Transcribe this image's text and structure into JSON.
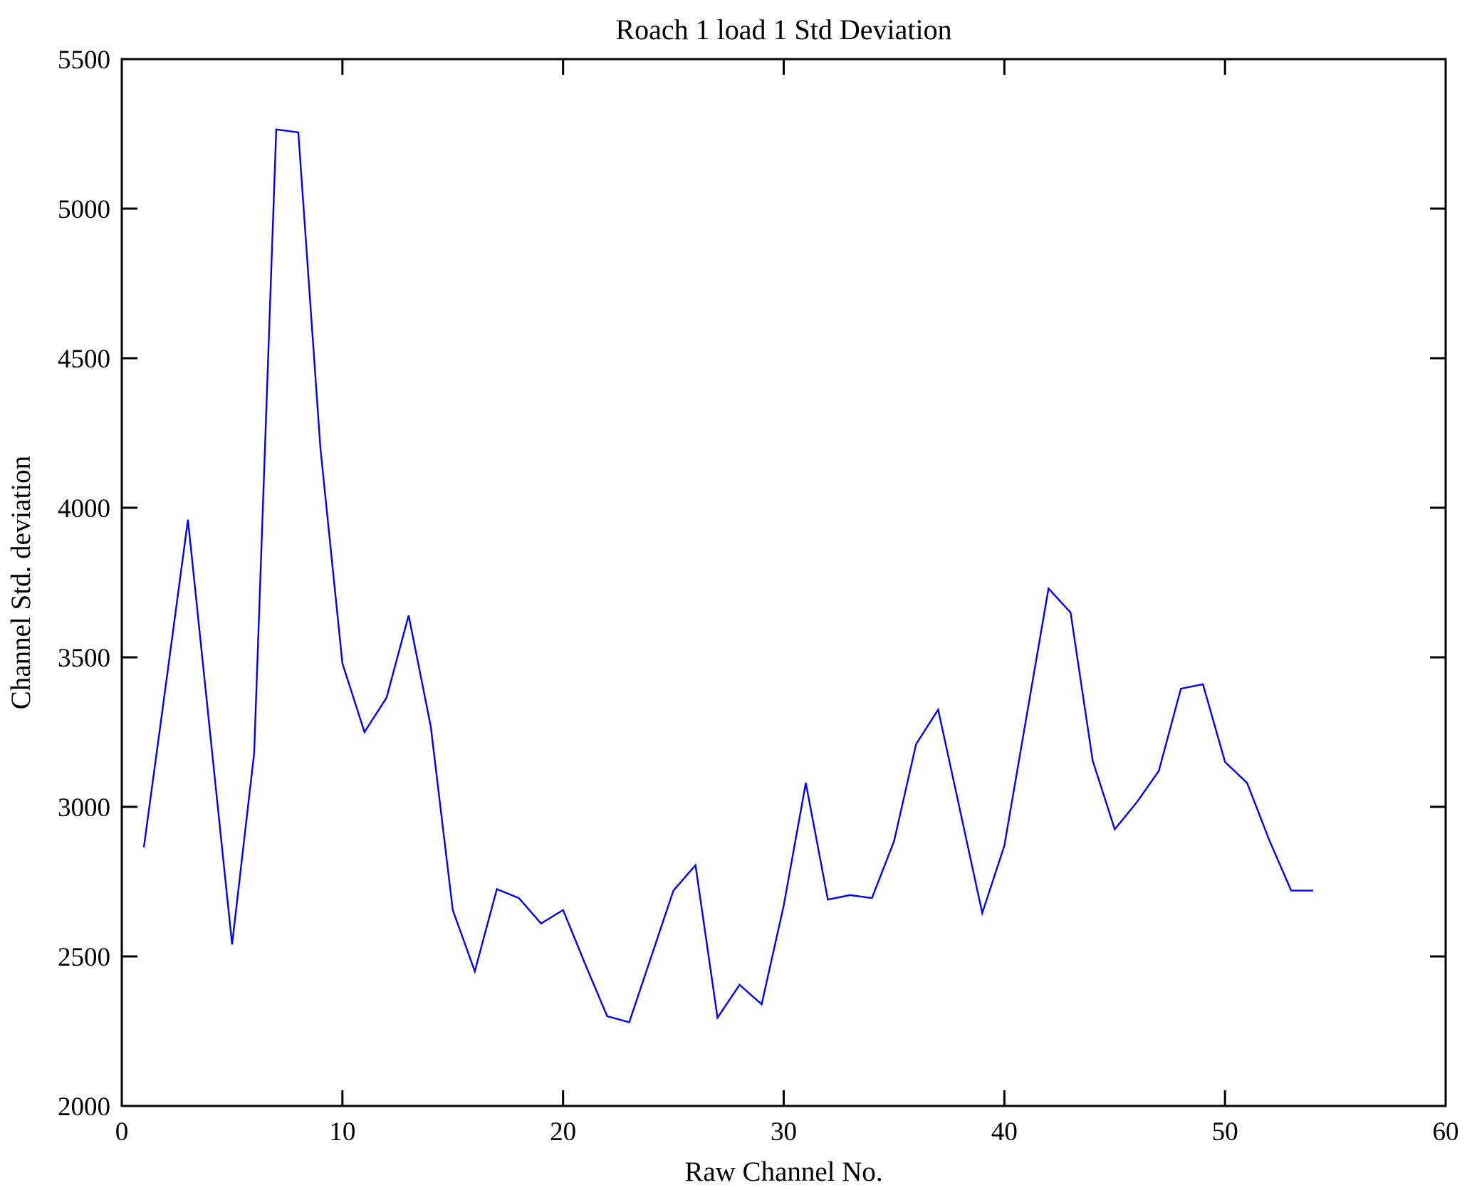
{
  "chart_data": {
    "type": "line",
    "title": "Roach 1 load 1 Std Deviation",
    "xlabel": "Raw Channel No.",
    "ylabel": "Channel Std. deviation",
    "xlim": [
      0,
      60
    ],
    "ylim": [
      2000,
      5500
    ],
    "xticks": [
      0,
      10,
      20,
      30,
      40,
      50,
      60
    ],
    "yticks": [
      2000,
      2500,
      3000,
      3500,
      4000,
      4500,
      5000,
      5500
    ],
    "grid": false,
    "legend": "none",
    "line_color": "#0000ff",
    "axis_color": "#000000",
    "background_color": "#ffffff",
    "x": [
      1,
      2,
      3,
      4,
      5,
      6,
      7,
      8,
      9,
      10,
      11,
      12,
      13,
      14,
      15,
      16,
      17,
      18,
      19,
      20,
      21,
      22,
      23,
      24,
      25,
      26,
      27,
      28,
      29,
      30,
      31,
      32,
      33,
      34,
      35,
      36,
      37,
      38,
      39,
      40,
      41,
      42,
      43,
      44,
      45,
      46,
      47,
      48,
      49,
      50,
      51,
      52,
      53,
      54
    ],
    "values": [
      2865,
      3410,
      3960,
      3250,
      2540,
      3180,
      5265,
      5255,
      4200,
      3480,
      3250,
      3365,
      3640,
      3270,
      2655,
      2450,
      2725,
      2695,
      2610,
      2655,
      2475,
      2300,
      2280,
      2500,
      2720,
      2805,
      2295,
      2405,
      2340,
      2670,
      3080,
      2690,
      2705,
      2695,
      2885,
      3210,
      3325,
      2985,
      2645,
      2870,
      3300,
      3730,
      3650,
      3155,
      2925,
      3015,
      3120,
      3395,
      3410,
      3150,
      3080,
      2890,
      2720,
      2720
    ]
  }
}
